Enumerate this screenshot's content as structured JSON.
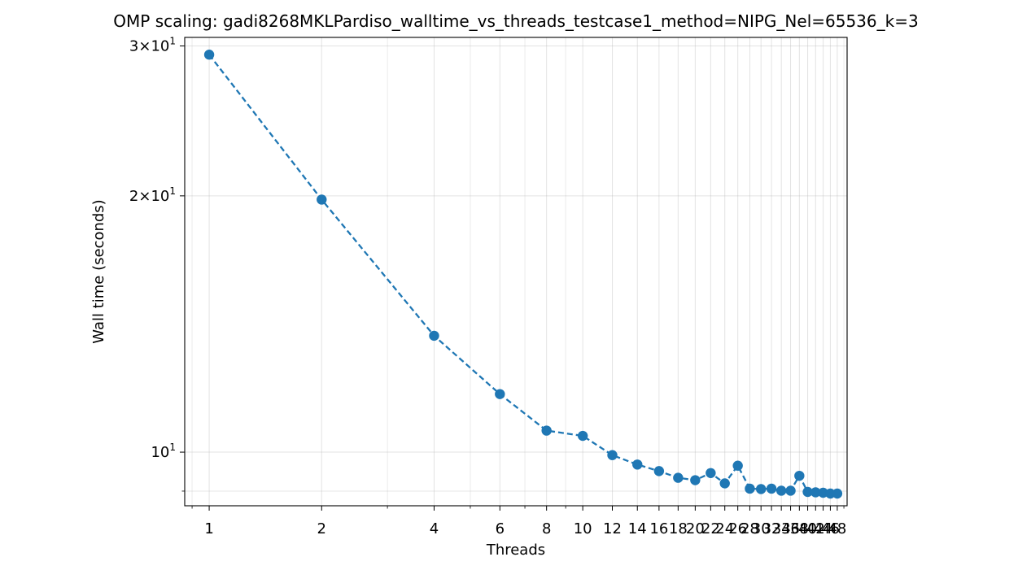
{
  "chart_data": {
    "type": "line",
    "title": "OMP scaling: gadi8268MKLPardiso_walltime_vs_threads_testcase1_method=NIPG_Nel=65536_k=3",
    "xlabel": "Threads",
    "ylabel": "Wall time (seconds)",
    "xscale": "log",
    "yscale": "log",
    "xlim": [
      0.86,
      51
    ],
    "ylim": [
      8.65,
      30.7
    ],
    "grid": true,
    "line_style": "dashed",
    "marker": "circle",
    "color": "#1f77b4",
    "xticks": [
      1,
      2,
      4,
      6,
      8,
      10,
      12,
      14,
      16,
      18,
      20,
      22,
      24,
      26,
      28,
      30,
      32,
      34,
      36,
      38,
      40,
      42,
      44,
      46,
      48
    ],
    "xtick_labels": [
      "1",
      "2",
      "4",
      "6",
      "8",
      "10",
      "12",
      "14",
      "16",
      "18",
      "20",
      "22",
      "24",
      "26",
      "28",
      "30",
      "32",
      "34",
      "36",
      "38",
      "40",
      "42",
      "44",
      "46",
      "48"
    ],
    "yticks": [
      {
        "base": "3",
        "exp": "1",
        "value": 30
      },
      {
        "base": "2",
        "exp": "1",
        "value": 20
      },
      {
        "base": "10",
        "exp": "1",
        "value": 10
      }
    ],
    "series": [
      {
        "x": [
          1,
          2,
          4,
          6,
          8,
          10,
          12,
          14,
          16,
          18,
          20,
          22,
          24,
          26,
          28,
          30,
          32,
          34,
          36,
          38,
          40,
          42,
          44,
          46,
          48
        ],
        "y": [
          29.3,
          19.8,
          13.7,
          11.7,
          10.6,
          10.45,
          9.92,
          9.67,
          9.5,
          9.33,
          9.27,
          9.45,
          9.19,
          9.64,
          9.06,
          9.05,
          9.06,
          9.01,
          9.01,
          9.38,
          8.98,
          8.97,
          8.96,
          8.94,
          8.94
        ]
      }
    ]
  }
}
